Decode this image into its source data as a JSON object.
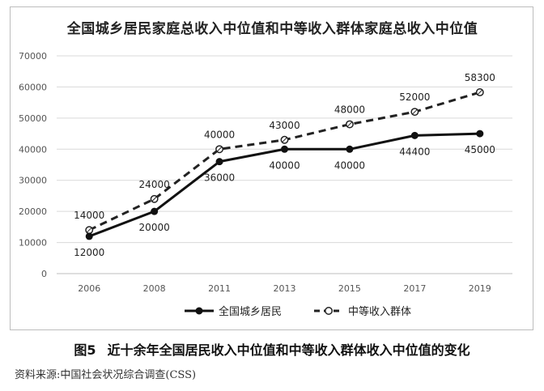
{
  "chart_data": {
    "type": "line",
    "title": "全国城乡居民家庭总收入中位值和中等收入群体家庭总收入中位值",
    "categories": [
      "2006",
      "2008",
      "2011",
      "2013",
      "2015",
      "2017",
      "2019"
    ],
    "ylim": [
      0,
      70000
    ],
    "yticks": [
      "0",
      "10000",
      "20000",
      "30000",
      "40000",
      "50000",
      "60000",
      "70000"
    ],
    "grid": true,
    "legend_position": "bottom",
    "series": [
      {
        "name": "全国城乡居民",
        "style": "solid",
        "color": "#111111",
        "values": [
          12000,
          20000,
          36000,
          40000,
          40000,
          44400,
          45000
        ],
        "labels": [
          "12000",
          "20000",
          "36000",
          "40000",
          "40000",
          "44400",
          "45000"
        ]
      },
      {
        "name": "中等收入群体",
        "style": "dashed",
        "color": "#222222",
        "values": [
          14000,
          24000,
          40000,
          43000,
          48000,
          52000,
          58300
        ],
        "labels": [
          "14000",
          "24000",
          "40000",
          "43000",
          "48000",
          "52000",
          "58300"
        ]
      }
    ]
  },
  "caption": {
    "figure_no": "图5",
    "text": "近十余年全国居民收入中位值和中等收入群体收入中位值的变化"
  },
  "source": "资料来源:中国社会状况综合调查(CSS)"
}
